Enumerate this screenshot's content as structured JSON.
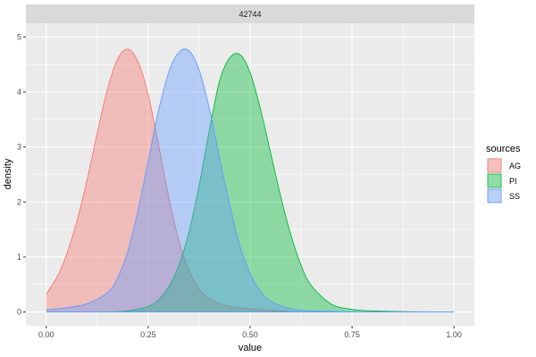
{
  "chart_data": {
    "type": "area",
    "facet_label": "42744",
    "xlabel": "value",
    "ylabel": "density",
    "xlim": [
      -0.05,
      1.05
    ],
    "ylim": [
      -0.25,
      5.25
    ],
    "x_ticks": [
      0,
      0.25,
      0.5,
      0.75,
      1
    ],
    "x_tick_labels": [
      "0.00",
      "0.25",
      "0.50",
      "0.75",
      "1.00"
    ],
    "y_ticks": [
      0,
      1,
      2,
      3,
      4,
      5
    ],
    "y_tick_labels": [
      "0",
      "1",
      "2",
      "3",
      "4",
      "5"
    ],
    "grid": true,
    "legend": {
      "title": "sources",
      "position": "right",
      "items": [
        "AG",
        "PI",
        "SS"
      ]
    },
    "series": [
      {
        "name": "AG",
        "color": "#F8766D",
        "x": [
          0,
          0.025,
          0.05,
          0.075,
          0.1,
          0.125,
          0.15,
          0.175,
          0.2,
          0.225,
          0.25,
          0.275,
          0.3,
          0.325,
          0.35,
          0.375,
          0.4,
          0.425,
          0.45,
          0.5,
          0.55,
          0.6
        ],
        "y": [
          0.33,
          0.62,
          1.05,
          1.65,
          2.4,
          3.25,
          4.05,
          4.6,
          4.78,
          4.55,
          3.95,
          3.05,
          2.1,
          1.3,
          0.75,
          0.42,
          0.24,
          0.15,
          0.1,
          0.06,
          0.03,
          0.01
        ]
      },
      {
        "name": "PI",
        "color": "#00BA38",
        "x": [
          0.15,
          0.2,
          0.25,
          0.275,
          0.3,
          0.325,
          0.35,
          0.375,
          0.4,
          0.425,
          0.45,
          0.475,
          0.5,
          0.525,
          0.55,
          0.575,
          0.6,
          0.625,
          0.65,
          0.7,
          0.75,
          0.8,
          0.85,
          0.9,
          1.0
        ],
        "y": [
          0,
          0.02,
          0.1,
          0.22,
          0.45,
          0.85,
          1.45,
          2.3,
          3.3,
          4.2,
          4.62,
          4.68,
          4.35,
          3.7,
          2.9,
          2.1,
          1.4,
          0.85,
          0.48,
          0.14,
          0.05,
          0.02,
          0.01,
          0.005,
          0
        ]
      },
      {
        "name": "SS",
        "color": "#619CFF",
        "x": [
          0,
          0.05,
          0.1,
          0.15,
          0.175,
          0.2,
          0.225,
          0.25,
          0.275,
          0.3,
          0.325,
          0.35,
          0.375,
          0.4,
          0.425,
          0.45,
          0.475,
          0.5,
          0.525,
          0.55,
          0.6,
          0.65,
          0.7,
          0.8,
          1.0
        ],
        "y": [
          0.04,
          0.08,
          0.15,
          0.35,
          0.62,
          1.1,
          1.85,
          2.75,
          3.65,
          4.35,
          4.72,
          4.75,
          4.4,
          3.7,
          2.8,
          1.95,
          1.2,
          0.7,
          0.38,
          0.2,
          0.06,
          0.02,
          0.01,
          0,
          0
        ]
      }
    ]
  }
}
